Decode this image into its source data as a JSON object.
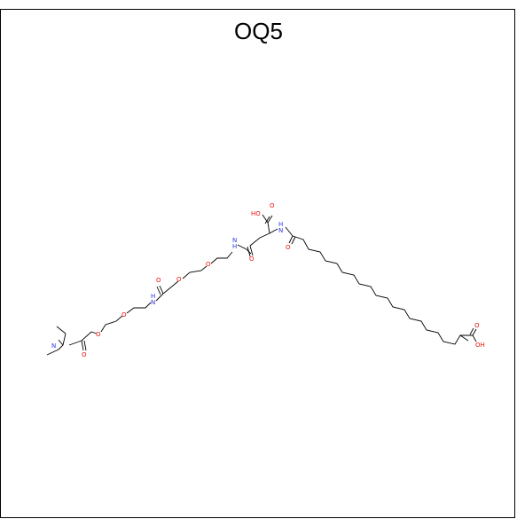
{
  "figure": {
    "title": "OQ5",
    "colors": {
      "bond": "#000000",
      "oxygen": "#e8130c",
      "nitrogen": "#2a33e6",
      "frame": "#000000"
    }
  },
  "molecule": {
    "labels": {
      "n_amine": "N",
      "o_amide_1": "O",
      "o_ether_1": "O",
      "o_ether_2": "O",
      "nh_1": "H\nN",
      "o_amide_2": "O",
      "o_ether_3": "O",
      "o_ether_4": "O",
      "nh_2": "N\nH",
      "o_amide_3": "O",
      "ho_acid": "HO",
      "o_acid_carbonyl": "O",
      "nh_3": "H\nN",
      "o_amide_4": "O",
      "o_acid_2": "O",
      "oh_acid_2": "OH"
    }
  }
}
